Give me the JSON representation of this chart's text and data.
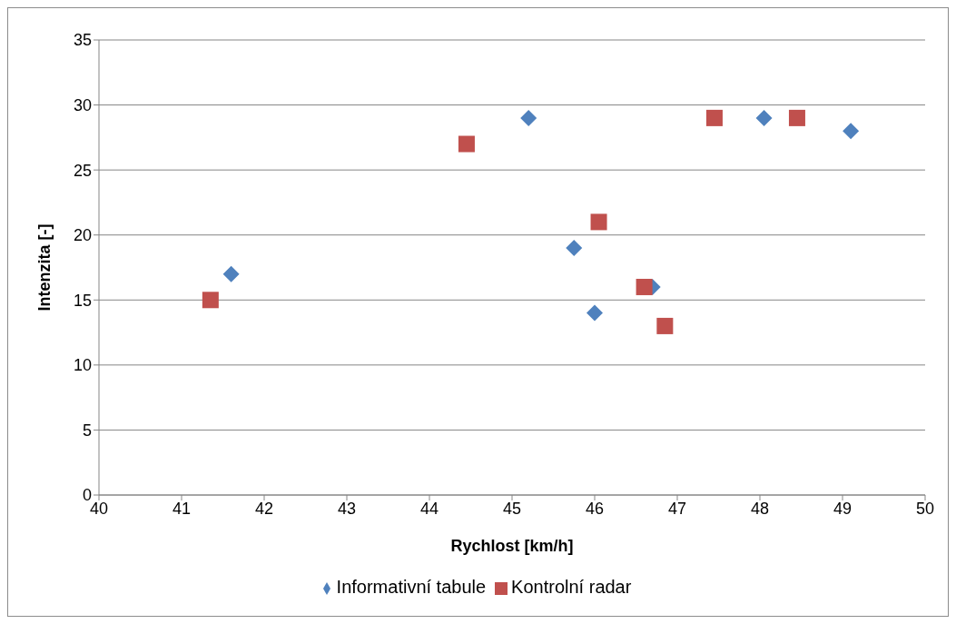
{
  "chart_data": {
    "type": "scatter",
    "xlabel": "Rychlost [km/h]",
    "ylabel": "Intenzita [-]",
    "xlim": [
      40,
      50
    ],
    "xticks": [
      40,
      41,
      42,
      43,
      44,
      45,
      46,
      47,
      48,
      49,
      50
    ],
    "ylim": [
      0,
      35
    ],
    "yticks": [
      0,
      5,
      10,
      15,
      20,
      25,
      30,
      35
    ],
    "grid": "y",
    "legend": "bottom",
    "series": [
      {
        "name": "Informativní tabule",
        "color": "#4f81bd",
        "marker": "diamond",
        "x": [
          41.6,
          45.2,
          45.75,
          46.0,
          46.7,
          48.05,
          49.1
        ],
        "values": [
          17,
          29,
          19,
          14,
          16,
          29,
          28
        ]
      },
      {
        "name": "Kontrolní radar",
        "color": "#c0504d",
        "marker": "square",
        "x": [
          41.35,
          44.45,
          46.05,
          46.6,
          46.85,
          47.45,
          48.45
        ],
        "values": [
          15,
          27,
          21,
          16,
          13,
          29,
          29
        ]
      }
    ]
  }
}
